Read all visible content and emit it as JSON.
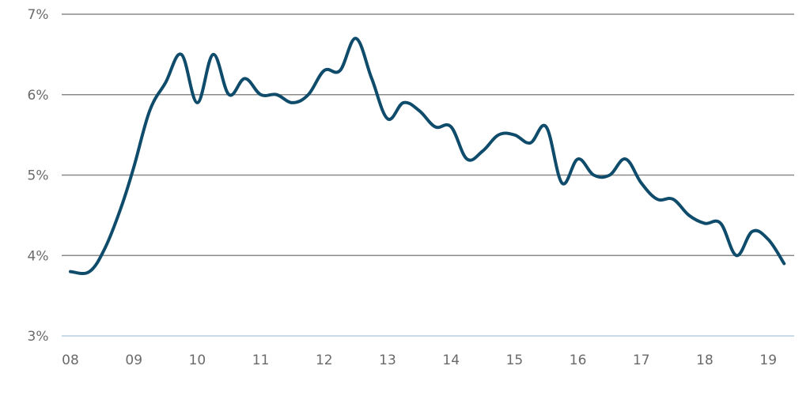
{
  "chart_data": {
    "type": "line",
    "title": "",
    "xlabel": "",
    "ylabel": "",
    "grid": true,
    "xlim": [
      2008,
      2019.25
    ],
    "ylim": [
      3,
      7
    ],
    "x_ticks": [
      2008,
      2009,
      2010,
      2011,
      2012,
      2013,
      2014,
      2015,
      2016,
      2017,
      2018,
      2019
    ],
    "x_tick_labels": [
      "08",
      "09",
      "10",
      "11",
      "12",
      "13",
      "14",
      "15",
      "16",
      "17",
      "18",
      "19"
    ],
    "y_ticks": [
      3,
      4,
      5,
      6,
      7
    ],
    "y_tick_labels": [
      "3%",
      "4%",
      "5%",
      "6%",
      "7%"
    ],
    "series": [
      {
        "color": "#0f4c6b",
        "points": [
          [
            2008.0,
            3.8
          ],
          [
            2008.3,
            3.8
          ],
          [
            2008.55,
            4.1
          ],
          [
            2008.8,
            4.6
          ],
          [
            2009.0,
            5.1
          ],
          [
            2009.25,
            5.8
          ],
          [
            2009.5,
            6.15
          ],
          [
            2009.75,
            6.5
          ],
          [
            2010.0,
            5.9
          ],
          [
            2010.25,
            6.5
          ],
          [
            2010.5,
            6.0
          ],
          [
            2010.75,
            6.2
          ],
          [
            2011.0,
            6.0
          ],
          [
            2011.25,
            6.0
          ],
          [
            2011.5,
            5.9
          ],
          [
            2011.75,
            6.0
          ],
          [
            2012.0,
            6.3
          ],
          [
            2012.25,
            6.3
          ],
          [
            2012.5,
            6.7
          ],
          [
            2012.75,
            6.2
          ],
          [
            2013.0,
            5.7
          ],
          [
            2013.25,
            5.9
          ],
          [
            2013.5,
            5.8
          ],
          [
            2013.75,
            5.6
          ],
          [
            2014.0,
            5.6
          ],
          [
            2014.25,
            5.2
          ],
          [
            2014.5,
            5.3
          ],
          [
            2014.75,
            5.5
          ],
          [
            2015.0,
            5.5
          ],
          [
            2015.25,
            5.4
          ],
          [
            2015.5,
            5.6
          ],
          [
            2015.75,
            4.9
          ],
          [
            2016.0,
            5.2
          ],
          [
            2016.25,
            5.0
          ],
          [
            2016.5,
            5.0
          ],
          [
            2016.75,
            5.2
          ],
          [
            2017.0,
            4.9
          ],
          [
            2017.25,
            4.7
          ],
          [
            2017.5,
            4.7
          ],
          [
            2017.75,
            4.5
          ],
          [
            2018.0,
            4.4
          ],
          [
            2018.25,
            4.4
          ],
          [
            2018.5,
            4.0
          ],
          [
            2018.75,
            4.3
          ],
          [
            2019.0,
            4.2
          ],
          [
            2019.25,
            3.9
          ]
        ]
      }
    ]
  }
}
